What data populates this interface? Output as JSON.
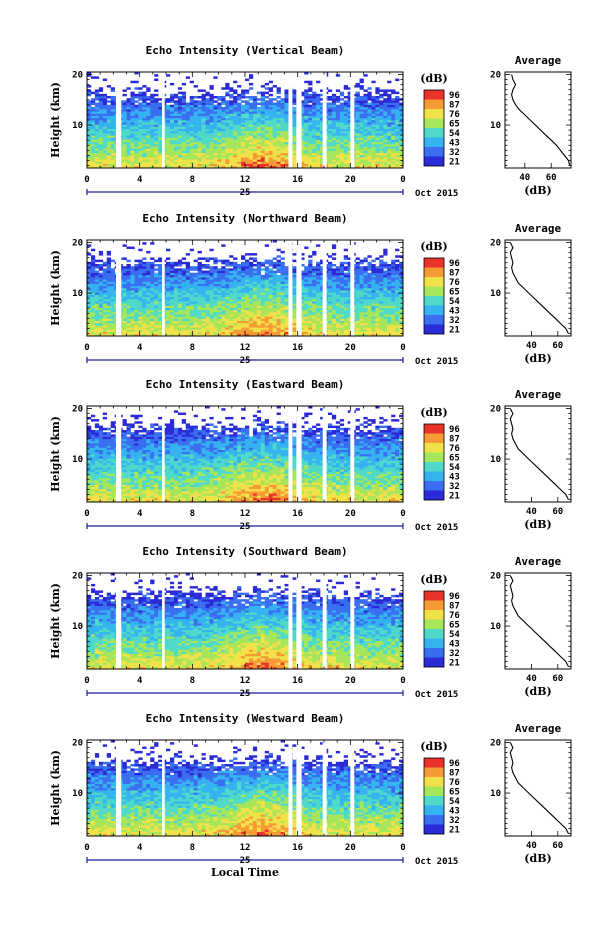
{
  "chart_data": [
    {
      "type": "heatmap",
      "title": "Echo Intensity (Vertical Beam)",
      "ylabel": "Height (km)",
      "xticks": [
        "0",
        "4",
        "8",
        "12",
        "16",
        "20",
        "0"
      ],
      "yticks": [
        "10",
        "20"
      ],
      "xlim": [
        0,
        24
      ],
      "ylim": [
        1.5,
        20.5
      ],
      "day_label": "25",
      "date_label": "Oct 2015",
      "colorbar": {
        "title": "(dB)",
        "ticks": [
          "96",
          "87",
          "76",
          "65",
          "54",
          "43",
          "32",
          "21"
        ]
      },
      "gaps": [
        [
          2.2,
          2.6
        ],
        [
          5.7,
          5.9
        ],
        [
          15.3,
          15.6
        ],
        [
          15.9,
          16.3
        ],
        [
          17.9,
          18.2
        ],
        [
          20.0,
          20.3
        ]
      ],
      "profile": {
        "title": "Average",
        "xlabel": "(dB)",
        "xticks": [
          "40",
          "60"
        ],
        "xlim": [
          25,
          75
        ],
        "yticks": [
          "10",
          "20"
        ],
        "height": [
          2,
          3,
          4,
          5,
          6,
          7,
          8,
          9,
          10,
          11,
          12,
          13,
          14,
          15,
          16,
          17,
          18,
          19,
          20
        ],
        "db": [
          74,
          73,
          70,
          67,
          64,
          60,
          56,
          52,
          48,
          44,
          40,
          36,
          33,
          31,
          30,
          31,
          33,
          31,
          30
        ]
      }
    },
    {
      "type": "heatmap",
      "title": "Echo Intensity (Northward Beam)",
      "ylabel": "Height (km)",
      "xticks": [
        "0",
        "4",
        "8",
        "12",
        "16",
        "20",
        "0"
      ],
      "yticks": [
        "10",
        "20"
      ],
      "xlim": [
        0,
        24
      ],
      "ylim": [
        1.5,
        20.5
      ],
      "day_label": "25",
      "date_label": "Oct 2015",
      "colorbar": {
        "title": "(dB)",
        "ticks": [
          "96",
          "87",
          "76",
          "65",
          "54",
          "43",
          "32",
          "21"
        ]
      },
      "gaps": [
        [
          2.2,
          2.6
        ],
        [
          5.7,
          5.9
        ],
        [
          15.3,
          15.6
        ],
        [
          15.9,
          16.3
        ],
        [
          17.9,
          18.2
        ],
        [
          20.0,
          20.3
        ]
      ],
      "profile": {
        "title": "Average",
        "xlabel": "(dB)",
        "xticks": [
          "40",
          "60"
        ],
        "xlim": [
          20,
          70
        ],
        "yticks": [
          "10",
          "20"
        ],
        "height": [
          2,
          3,
          4,
          5,
          6,
          7,
          8,
          9,
          10,
          11,
          12,
          13,
          14,
          15,
          16,
          17,
          18,
          19,
          20
        ],
        "db": [
          68,
          66,
          62,
          58,
          54,
          50,
          46,
          42,
          38,
          34,
          30,
          28,
          26,
          25,
          26,
          25,
          24,
          26,
          24
        ]
      }
    },
    {
      "type": "heatmap",
      "title": "Echo Intensity (Eastward Beam)",
      "ylabel": "Height (km)",
      "xticks": [
        "0",
        "4",
        "8",
        "12",
        "16",
        "20",
        "0"
      ],
      "yticks": [
        "10",
        "20"
      ],
      "xlim": [
        0,
        24
      ],
      "ylim": [
        1.5,
        20.5
      ],
      "day_label": "25",
      "date_label": "Oct 2015",
      "colorbar": {
        "title": "(dB)",
        "ticks": [
          "96",
          "87",
          "76",
          "65",
          "54",
          "43",
          "32",
          "21"
        ]
      },
      "gaps": [
        [
          2.2,
          2.6
        ],
        [
          5.7,
          5.9
        ],
        [
          15.3,
          15.6
        ],
        [
          15.9,
          16.3
        ],
        [
          17.9,
          18.2
        ],
        [
          20.0,
          20.3
        ]
      ],
      "profile": {
        "title": "Average",
        "xlabel": "(dB)",
        "xticks": [
          "40",
          "60"
        ],
        "xlim": [
          20,
          70
        ],
        "yticks": [
          "10",
          "20"
        ],
        "height": [
          2,
          3,
          4,
          5,
          6,
          7,
          8,
          9,
          10,
          11,
          12,
          13,
          14,
          15,
          16,
          17,
          18,
          19,
          20
        ],
        "db": [
          68,
          66,
          62,
          58,
          54,
          50,
          46,
          42,
          38,
          34,
          30,
          28,
          26,
          25,
          26,
          25,
          24,
          26,
          24
        ]
      }
    },
    {
      "type": "heatmap",
      "title": "Echo Intensity (Southward Beam)",
      "ylabel": "Height (km)",
      "xticks": [
        "0",
        "4",
        "8",
        "12",
        "16",
        "20",
        "0"
      ],
      "yticks": [
        "10",
        "20"
      ],
      "xlim": [
        0,
        24
      ],
      "ylim": [
        1.5,
        20.5
      ],
      "day_label": "25",
      "date_label": "Oct 2015",
      "colorbar": {
        "title": "(dB)",
        "ticks": [
          "96",
          "87",
          "76",
          "65",
          "54",
          "43",
          "32",
          "21"
        ]
      },
      "gaps": [
        [
          2.2,
          2.6
        ],
        [
          5.7,
          5.9
        ],
        [
          15.3,
          15.6
        ],
        [
          15.9,
          16.3
        ],
        [
          17.9,
          18.2
        ],
        [
          20.0,
          20.3
        ]
      ],
      "profile": {
        "title": "Average",
        "xlabel": "(dB)",
        "xticks": [
          "40",
          "60"
        ],
        "xlim": [
          20,
          70
        ],
        "yticks": [
          "10",
          "20"
        ],
        "height": [
          2,
          3,
          4,
          5,
          6,
          7,
          8,
          9,
          10,
          11,
          12,
          13,
          14,
          15,
          16,
          17,
          18,
          19,
          20
        ],
        "db": [
          68,
          66,
          62,
          58,
          54,
          50,
          46,
          42,
          38,
          34,
          30,
          28,
          26,
          25,
          26,
          25,
          24,
          26,
          24
        ]
      }
    },
    {
      "type": "heatmap",
      "title": "Echo Intensity (Westward Beam)",
      "ylabel": "Height (km)",
      "xticks": [
        "0",
        "4",
        "8",
        "12",
        "16",
        "20",
        "0"
      ],
      "yticks": [
        "10",
        "20"
      ],
      "xlim": [
        0,
        24
      ],
      "ylim": [
        1.5,
        20.5
      ],
      "day_label": "25",
      "date_label": "Oct 2015",
      "xlabel": "Local Time",
      "colorbar": {
        "title": "(dB)",
        "ticks": [
          "96",
          "87",
          "76",
          "65",
          "54",
          "43",
          "32",
          "21"
        ]
      },
      "gaps": [
        [
          2.2,
          2.6
        ],
        [
          5.7,
          5.9
        ],
        [
          15.3,
          15.6
        ],
        [
          15.9,
          16.3
        ],
        [
          17.9,
          18.2
        ],
        [
          20.0,
          20.3
        ]
      ],
      "profile": {
        "title": "Average",
        "xlabel": "(dB)",
        "xticks": [
          "40",
          "60"
        ],
        "xlim": [
          20,
          70
        ],
        "yticks": [
          "10",
          "20"
        ],
        "height": [
          2,
          3,
          4,
          5,
          6,
          7,
          8,
          9,
          10,
          11,
          12,
          13,
          14,
          15,
          16,
          17,
          18,
          19,
          20
        ],
        "db": [
          68,
          66,
          62,
          58,
          54,
          50,
          46,
          42,
          38,
          34,
          30,
          28,
          26,
          25,
          26,
          25,
          24,
          26,
          24
        ]
      }
    }
  ],
  "colors": {
    "scale": [
      "#2a2ad6",
      "#3a6ef0",
      "#35b3f0",
      "#4fd9c8",
      "#a6e65a",
      "#f2e24a",
      "#f59a35",
      "#e8322a"
    ],
    "axis": "#000000",
    "time_axis": "#1a1aa0"
  }
}
